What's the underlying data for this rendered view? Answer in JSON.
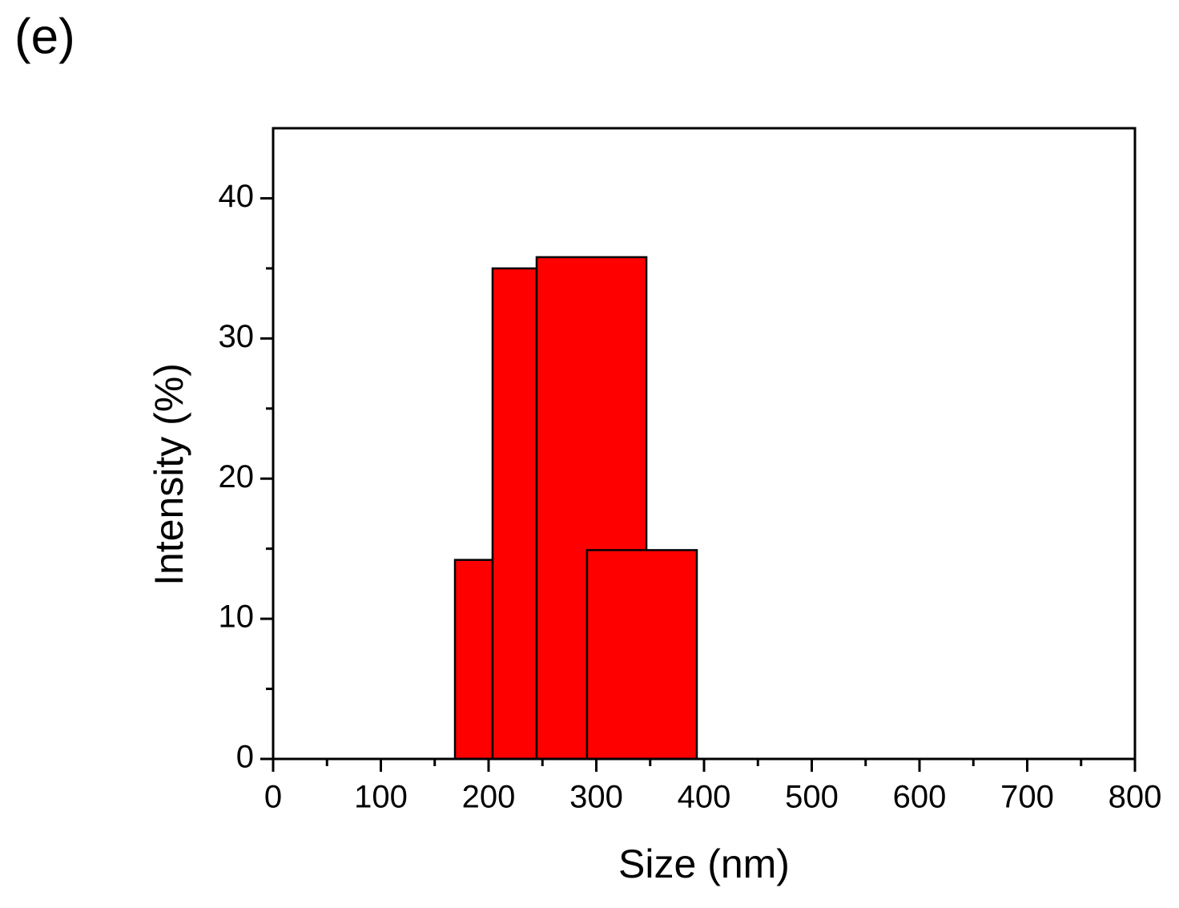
{
  "panel_label": "(e)",
  "chart_data": {
    "type": "bar-ranges",
    "x_label": "Size (nm)",
    "y_label": "Intensity (%)",
    "x_start": [
      168.8,
      203.7,
      244.6,
      291.4
    ],
    "x_end": [
      203.7,
      244.6,
      346.5,
      393.3
    ],
    "values": [
      14.2,
      35.0,
      35.8,
      14.9
    ],
    "color": "#ff0000",
    "xlim": [
      0,
      800
    ],
    "xticks": [
      0,
      100,
      200,
      300,
      400,
      500,
      600,
      700,
      800
    ],
    "ylim": [
      0,
      45
    ],
    "yticks": [
      0,
      10,
      20,
      30,
      40
    ]
  }
}
